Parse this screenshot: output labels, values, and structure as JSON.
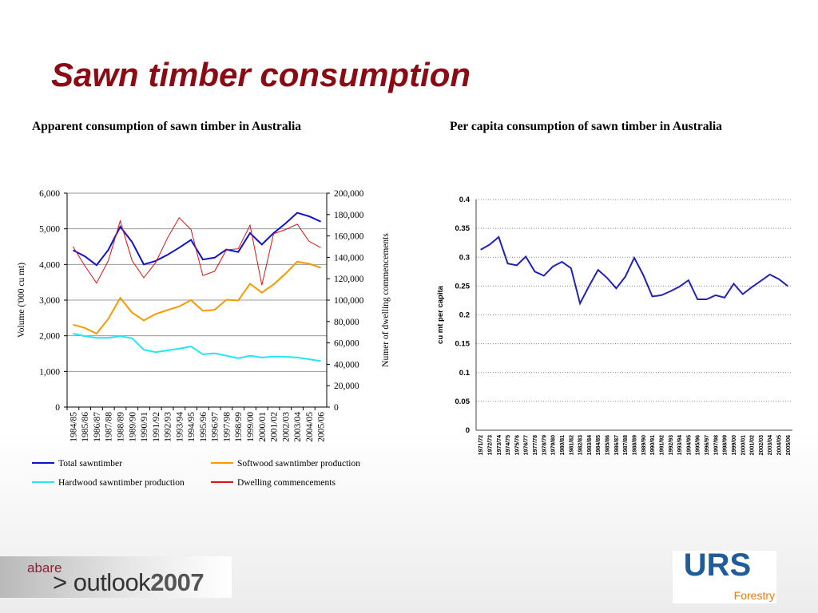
{
  "slide": {
    "title": "Sawn timber consumption"
  },
  "brand": {
    "small": "abare",
    "prefix": "> outlook",
    "year": "2007"
  },
  "logo": {
    "name": "URS",
    "sub": "Forestry",
    "color": "#1f5c99",
    "sub_color": "#e07b16"
  },
  "chart_data": [
    {
      "type": "line",
      "title": "Apparent consumption of sawn timber in Australia",
      "ylabel": "Volume ('000 cu mt)",
      "y2label": "Numer of dwelling commencements",
      "ylim": [
        0,
        6000
      ],
      "y2lim": [
        0,
        200000
      ],
      "yticks": [
        "0",
        "1,000",
        "2,000",
        "3,000",
        "4,000",
        "5,000",
        "6,000"
      ],
      "y2ticks": [
        "0",
        "20,000",
        "40,000",
        "60,000",
        "80,000",
        "100,000",
        "120,000",
        "140,000",
        "160,000",
        "180,000",
        "200,000"
      ],
      "grid": true,
      "legend_position": "bottom",
      "categories": [
        "1984/85",
        "1985/86",
        "1986/87",
        "1987/88",
        "1988/89",
        "1989/90",
        "1990/91",
        "1991/92",
        "1992/93",
        "1993/94",
        "1994/95",
        "1995/96",
        "1996/97",
        "1997/98",
        "1998/99",
        "1999/00",
        "2000/01",
        "2001/02",
        "2002/03",
        "2003/04",
        "2004/05",
        "2005/06"
      ],
      "series": [
        {
          "name": "Total sawntimber",
          "axis": "left",
          "color": "#1111cc",
          "width": 2,
          "values": [
            4400,
            4230,
            3980,
            4410,
            5060,
            4630,
            4000,
            4100,
            4270,
            4470,
            4690,
            4140,
            4190,
            4420,
            4350,
            4880,
            4560,
            4880,
            5150,
            5450,
            5350,
            5200
          ]
        },
        {
          "name": "Softwood sawntimber production",
          "axis": "left",
          "color": "#f59a00",
          "width": 2,
          "values": [
            2310,
            2220,
            2060,
            2480,
            3060,
            2650,
            2430,
            2610,
            2720,
            2820,
            3000,
            2700,
            2730,
            3010,
            2990,
            3460,
            3210,
            3440,
            3740,
            4080,
            4020,
            3910
          ]
        },
        {
          "name": "Hardwood sawntimber production",
          "axis": "left",
          "color": "#22e6f5",
          "width": 2,
          "values": [
            2060,
            1990,
            1940,
            1940,
            1990,
            1930,
            1610,
            1540,
            1590,
            1640,
            1700,
            1480,
            1510,
            1440,
            1370,
            1440,
            1390,
            1420,
            1410,
            1390,
            1340,
            1290
          ]
        },
        {
          "name": "Dwelling commencements",
          "axis": "right",
          "color": "#dd1111",
          "width": 1,
          "values": [
            150000,
            132000,
            116000,
            137000,
            174000,
            137000,
            121000,
            135000,
            158000,
            177000,
            166000,
            123000,
            127000,
            147000,
            148000,
            170000,
            114000,
            162000,
            166000,
            171000,
            155000,
            149000
          ]
        }
      ]
    },
    {
      "type": "line",
      "title": "Per capita consumption of sawn timber in Australia",
      "ylabel": "cu mt per capita",
      "ylim": [
        0,
        0.4
      ],
      "yticks": [
        "0",
        "0.05",
        "0.1",
        "0.15",
        "0.2",
        "0.25",
        "0.3",
        "0.35",
        "0.4"
      ],
      "grid": true,
      "categories": [
        "1971/72",
        "1972/73",
        "1973/74",
        "1974/75",
        "1975/76",
        "1976/77",
        "1977/78",
        "1978/79",
        "1979/80",
        "1980/81",
        "1981/82",
        "1982/83",
        "1983/84",
        "1984/85",
        "1985/86",
        "1986/87",
        "1987/88",
        "1988/89",
        "1989/90",
        "1990/91",
        "1991/92",
        "1992/93",
        "1993/94",
        "1994/95",
        "1995/96",
        "1996/97",
        "1997/98",
        "1998/99",
        "1999/00",
        "2000/01",
        "2001/02",
        "2002/03",
        "2003/04",
        "2004/05",
        "2005/06"
      ],
      "series": [
        {
          "color": "#2222bb",
          "values": [
            0.313,
            0.322,
            0.335,
            0.289,
            0.286,
            0.301,
            0.275,
            0.268,
            0.284,
            0.292,
            0.281,
            0.22,
            0.25,
            0.278,
            0.264,
            0.246,
            0.266,
            0.299,
            0.269,
            0.232,
            0.234,
            0.241,
            0.249,
            0.26,
            0.227,
            0.227,
            0.234,
            0.23,
            0.254,
            0.236,
            0.248,
            0.259,
            0.27,
            0.262,
            0.25
          ]
        }
      ]
    }
  ]
}
